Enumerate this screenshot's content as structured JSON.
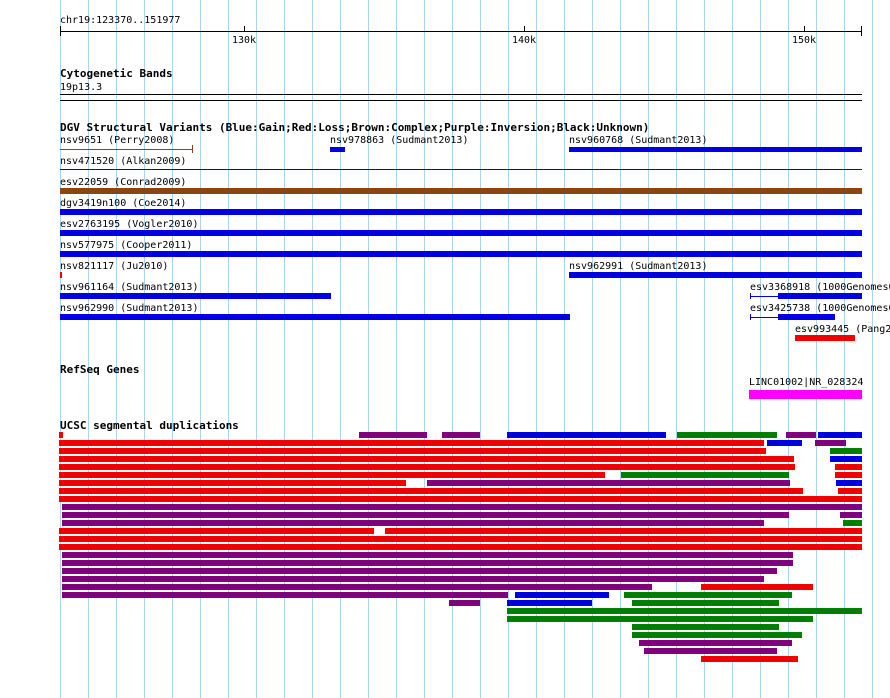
{
  "ruler": {
    "position": "chr19:123370..151977",
    "ticks": [
      "130k",
      "140k",
      "150k"
    ]
  },
  "tracks": {
    "cytobands": {
      "title": "Cytogenetic Bands",
      "band": "19p13.3"
    },
    "dgv": {
      "title": "DGV Structural Variants (Blue:Gain;Red:Loss;Brown:Complex;Purple:Inversion;Black:Unknown)",
      "labels": [
        "nsv9651 (Perry2008)",
        "nsv978863 (Sudmant2013)",
        "nsv960768 (Sudmant2013)",
        "nsv471520 (Alkan2009)",
        "esv22059 (Conrad2009)",
        "dgv3419n100 (Coe2014)",
        "esv2763195 (Vogler2010)",
        "nsv577975 (Cooper2011)",
        "nsv821117 (Ju2010)",
        "nsv962991 (Sudmant2013)",
        "nsv961164 (Sudmant2013)",
        "esv3368918 (1000Genomes0",
        "nsv962990 (Sudmant2013)",
        "esv3425738 (1000Genomes0",
        "esv993445 (Pang2"
      ]
    },
    "refseq": {
      "title": "RefSeq Genes",
      "gene": "LINC01002|NR_028324"
    },
    "segdups": {
      "title": "UCSC segmental duplications"
    }
  },
  "colors": {
    "gain": "#0000e0",
    "loss": "#f20000",
    "complex": "#8b4513",
    "inversion": "#800080",
    "green": "#008000",
    "refseq": "#ff00ff",
    "grid": "#aad4f2"
  }
}
